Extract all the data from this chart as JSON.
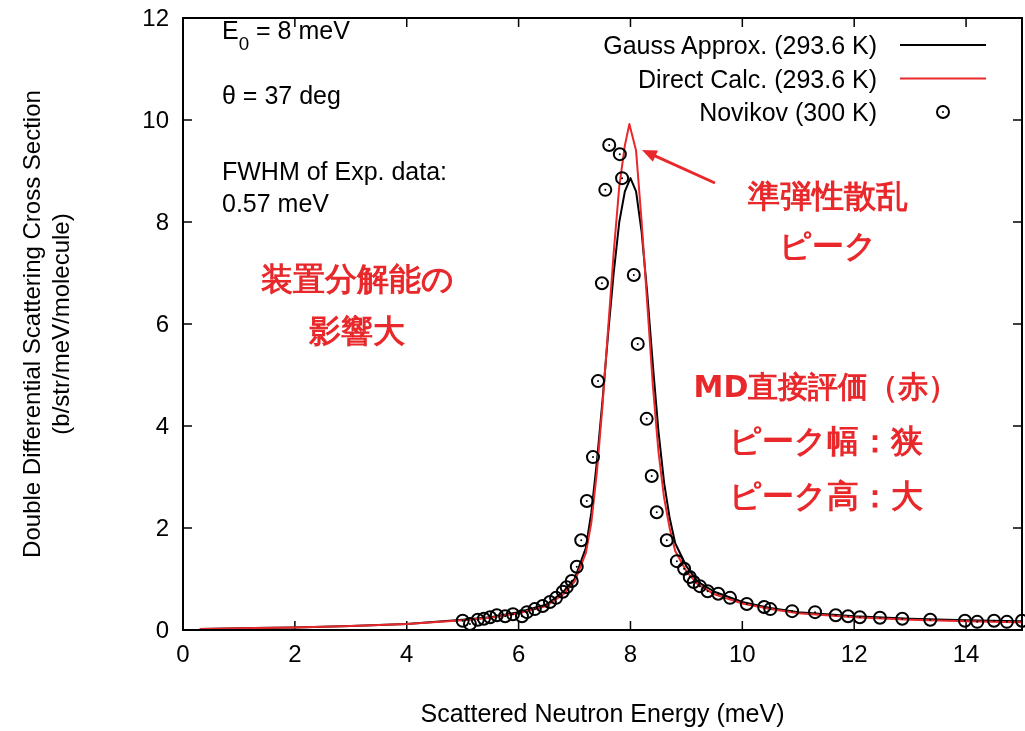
{
  "chart_data": {
    "type": "line",
    "xlabel": "Scattered Neutron Energy (meV)",
    "ylabel": "Double Differential Scattering Cross Section\n(b/str/meV/molecule)",
    "xlim": [
      0,
      15
    ],
    "ylim": [
      0,
      12
    ],
    "xticks": [
      0,
      2,
      4,
      6,
      8,
      10,
      12,
      14
    ],
    "yticks": [
      0,
      2,
      4,
      6,
      8,
      10,
      12
    ],
    "grid": false,
    "legend": "top right",
    "series": [
      {
        "name": "Gauss Approx. (293.6 K)",
        "color": "#000000",
        "marker": "none",
        "x": [
          0.3,
          2,
          3,
          4,
          5,
          5.5,
          6,
          6.5,
          6.8,
          7.0,
          7.2,
          7.3,
          7.4,
          7.5,
          7.6,
          7.7,
          7.8,
          7.9,
          8.0,
          8.1,
          8.2,
          8.3,
          8.4,
          8.5,
          8.6,
          8.7,
          8.8,
          9.0,
          9.2,
          9.5,
          10,
          10.5,
          11,
          12,
          13,
          14,
          15
        ],
        "values": [
          0.02,
          0.05,
          0.08,
          0.12,
          0.2,
          0.25,
          0.35,
          0.5,
          0.75,
          1.0,
          1.6,
          2.3,
          3.3,
          4.5,
          5.8,
          7.0,
          8.0,
          8.6,
          8.86,
          8.6,
          7.8,
          6.6,
          5.2,
          3.9,
          2.9,
          2.2,
          1.7,
          1.25,
          0.95,
          0.75,
          0.55,
          0.43,
          0.35,
          0.27,
          0.22,
          0.19,
          0.17
        ]
      },
      {
        "name": "Direct Calc. (293.6 K)",
        "color": "#e8282b",
        "marker": "none",
        "x": [
          0.3,
          2,
          3,
          4,
          5,
          5.5,
          6,
          6.5,
          6.8,
          7.0,
          7.2,
          7.3,
          7.4,
          7.5,
          7.6,
          7.7,
          7.8,
          7.9,
          7.98,
          8.1,
          8.2,
          8.3,
          8.4,
          8.5,
          8.6,
          8.7,
          8.8,
          9.0,
          9.2,
          9.5,
          10,
          10.5,
          11,
          12,
          13,
          14,
          15
        ],
        "values": [
          0.02,
          0.05,
          0.08,
          0.12,
          0.19,
          0.24,
          0.33,
          0.47,
          0.7,
          0.95,
          1.5,
          2.1,
          3.1,
          4.4,
          5.9,
          7.4,
          8.7,
          9.5,
          9.92,
          9.4,
          8.0,
          6.4,
          4.8,
          3.5,
          2.6,
          2.0,
          1.55,
          1.15,
          0.9,
          0.7,
          0.52,
          0.41,
          0.33,
          0.25,
          0.2,
          0.17,
          0.15
        ]
      },
      {
        "name": "Novikov (300 K)",
        "type": "scatter",
        "color": "#000000",
        "marker": "circle",
        "x": [
          5.0,
          5.13,
          5.27,
          5.38,
          5.49,
          5.61,
          5.76,
          5.9,
          6.06,
          6.15,
          6.29,
          6.43,
          6.56,
          6.67,
          6.79,
          6.86,
          6.95,
          7.04,
          7.12,
          7.22,
          7.33,
          7.42,
          7.49,
          7.55,
          7.62,
          7.81,
          7.85,
          8.06,
          8.13,
          8.29,
          8.38,
          8.47,
          8.65,
          8.83,
          8.96,
          9.06,
          9.13,
          9.24,
          9.38,
          9.57,
          9.78,
          10.08,
          10.39,
          10.5,
          10.89,
          11.3,
          11.67,
          11.89,
          12.1,
          12.46,
          12.86,
          13.36,
          13.98,
          14.2,
          14.5,
          14.73,
          15.0
        ],
        "values": [
          0.18,
          0.12,
          0.2,
          0.22,
          0.25,
          0.29,
          0.27,
          0.31,
          0.27,
          0.35,
          0.41,
          0.47,
          0.55,
          0.63,
          0.75,
          0.84,
          0.96,
          1.24,
          1.76,
          2.53,
          3.39,
          4.88,
          6.8,
          8.63,
          9.51,
          9.33,
          8.86,
          6.96,
          5.61,
          4.14,
          3.02,
          2.31,
          1.76,
          1.35,
          1.2,
          1.04,
          0.94,
          0.86,
          0.76,
          0.71,
          0.63,
          0.51,
          0.45,
          0.41,
          0.37,
          0.35,
          0.29,
          0.27,
          0.25,
          0.24,
          0.22,
          0.2,
          0.18,
          0.16,
          0.18,
          0.16,
          0.18
        ]
      }
    ],
    "annotations": [
      "E$_{0}$ = 8 meV",
      "θ = 37 deg",
      "FWHM of Exp. data:\n 0.57 meV",
      "装置分解能の",
      "影響大",
      "準弾性散乱",
      "ピーク",
      "MD直接評価（赤）",
      "ピーク幅：狭",
      "ピーク高：大"
    ]
  }
}
